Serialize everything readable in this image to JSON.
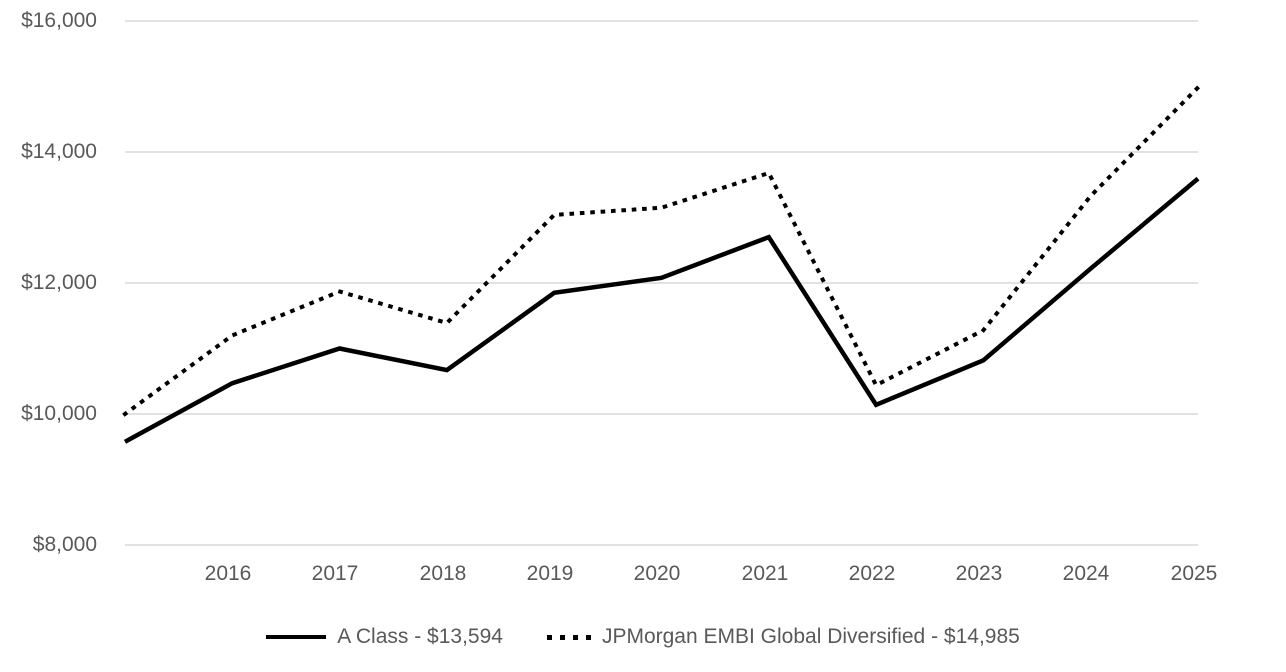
{
  "colors": {
    "grid": "#D9D9D9",
    "axis_label": "#595959",
    "line": "#000000"
  },
  "chart_data": {
    "type": "line",
    "title": "",
    "xlabel": "",
    "ylabel": "",
    "grid": "horizontal",
    "legend_position": "bottom",
    "ylim": [
      8000,
      16000
    ],
    "y_ticks": [
      16000,
      14000,
      12000,
      10000,
      8000
    ],
    "y_tick_labels": [
      "$16,000",
      "$14,000",
      "$12,000",
      "$10,000",
      "$8,000"
    ],
    "x_tick_labels": [
      "2016",
      "2017",
      "2018",
      "2019",
      "2020",
      "2021",
      "2022",
      "2023",
      "2024",
      "2025"
    ],
    "x_note": "each series has 11 points; the first point sits one interval left of the 2016 tick",
    "series": [
      {
        "name": "A Class - $13,594",
        "line_style": "solid",
        "color": "#000000",
        "final_value": 13594,
        "values": [
          9575,
          10470,
          11000,
          10670,
          11850,
          12080,
          12700,
          10140,
          10820,
          12220,
          13594
        ]
      },
      {
        "name": "JPMorgan EMBI Global Diversified - $14,985",
        "line_style": "dotted",
        "color": "#000000",
        "final_value": 14985,
        "values": [
          10000,
          11200,
          11870,
          11390,
          13040,
          13150,
          13680,
          10440,
          11280,
          13330,
          14985
        ]
      }
    ]
  }
}
